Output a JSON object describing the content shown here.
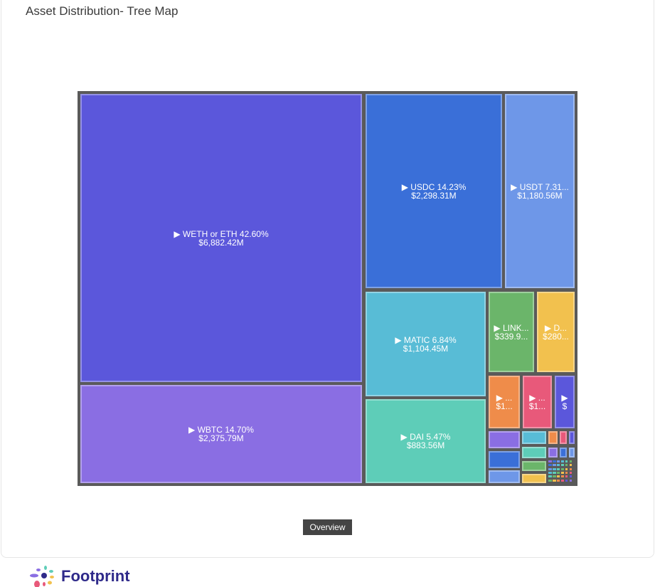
{
  "header": {
    "title": "Asset Distribution- Tree Map",
    "faint_text": "— — — — — — — — —"
  },
  "chart_data": {
    "type": "treemap",
    "title": "Asset Distribution- Tree Map",
    "items": [
      {
        "name": "WETH or ETH",
        "percent": 42.6,
        "value_musd": 6882.42,
        "line1": "▶ WETH or ETH 42.60%",
        "line2": "$6,882.42M",
        "color": "#5b57db"
      },
      {
        "name": "WBTC",
        "percent": 14.7,
        "value_musd": 2375.79,
        "line1": "▶ WBTC 14.70%",
        "line2": "$2,375.79M",
        "color": "#8a6ee3"
      },
      {
        "name": "USDC",
        "percent": 14.23,
        "value_musd": 2298.31,
        "line1": "▶ USDC 14.23%",
        "line2": "$2,298.31M",
        "color": "#3a6fd8"
      },
      {
        "name": "USDT",
        "percent": 7.31,
        "value_musd": 1180.56,
        "line1": "▶ USDT 7.31...",
        "line2": "$1,180.56M",
        "color": "#6e97e8"
      },
      {
        "name": "MATIC",
        "percent": 6.84,
        "value_musd": 1104.45,
        "line1": "▶ MATIC 6.84%",
        "line2": "$1,104.45M",
        "color": "#58bcd6"
      },
      {
        "name": "DAI",
        "percent": 5.47,
        "value_musd": 883.56,
        "line1": "▶ DAI 5.47%",
        "line2": "$883.56M",
        "color": "#5ecdb8"
      },
      {
        "name": "LINK",
        "line1": "▶ LINK...",
        "line2": "$339.9...",
        "color": "#6bb56a"
      },
      {
        "name": "D",
        "line1": "▶ D...",
        "line2": "$280...",
        "color": "#f2c14e"
      },
      {
        "line1": "▶ ...",
        "line2": "$1...",
        "color": "#ef8c4a"
      },
      {
        "line1": "▶ ...",
        "line2": "$1...",
        "color": "#e8597a"
      },
      {
        "line1": "▶",
        "line2": "$",
        "color": "#5b57db"
      }
    ],
    "small_colors": [
      "#8a6ee3",
      "#3a6fd8",
      "#6e97e8",
      "#58bcd6",
      "#5ecdb8",
      "#6bb56a",
      "#f2c14e",
      "#ef8c4a",
      "#e8597a",
      "#5b57db",
      "#8a6ee3",
      "#3a6fd8",
      "#6e97e8"
    ]
  },
  "footer": {
    "overview_button": "Overview",
    "brand": "Footprint"
  }
}
